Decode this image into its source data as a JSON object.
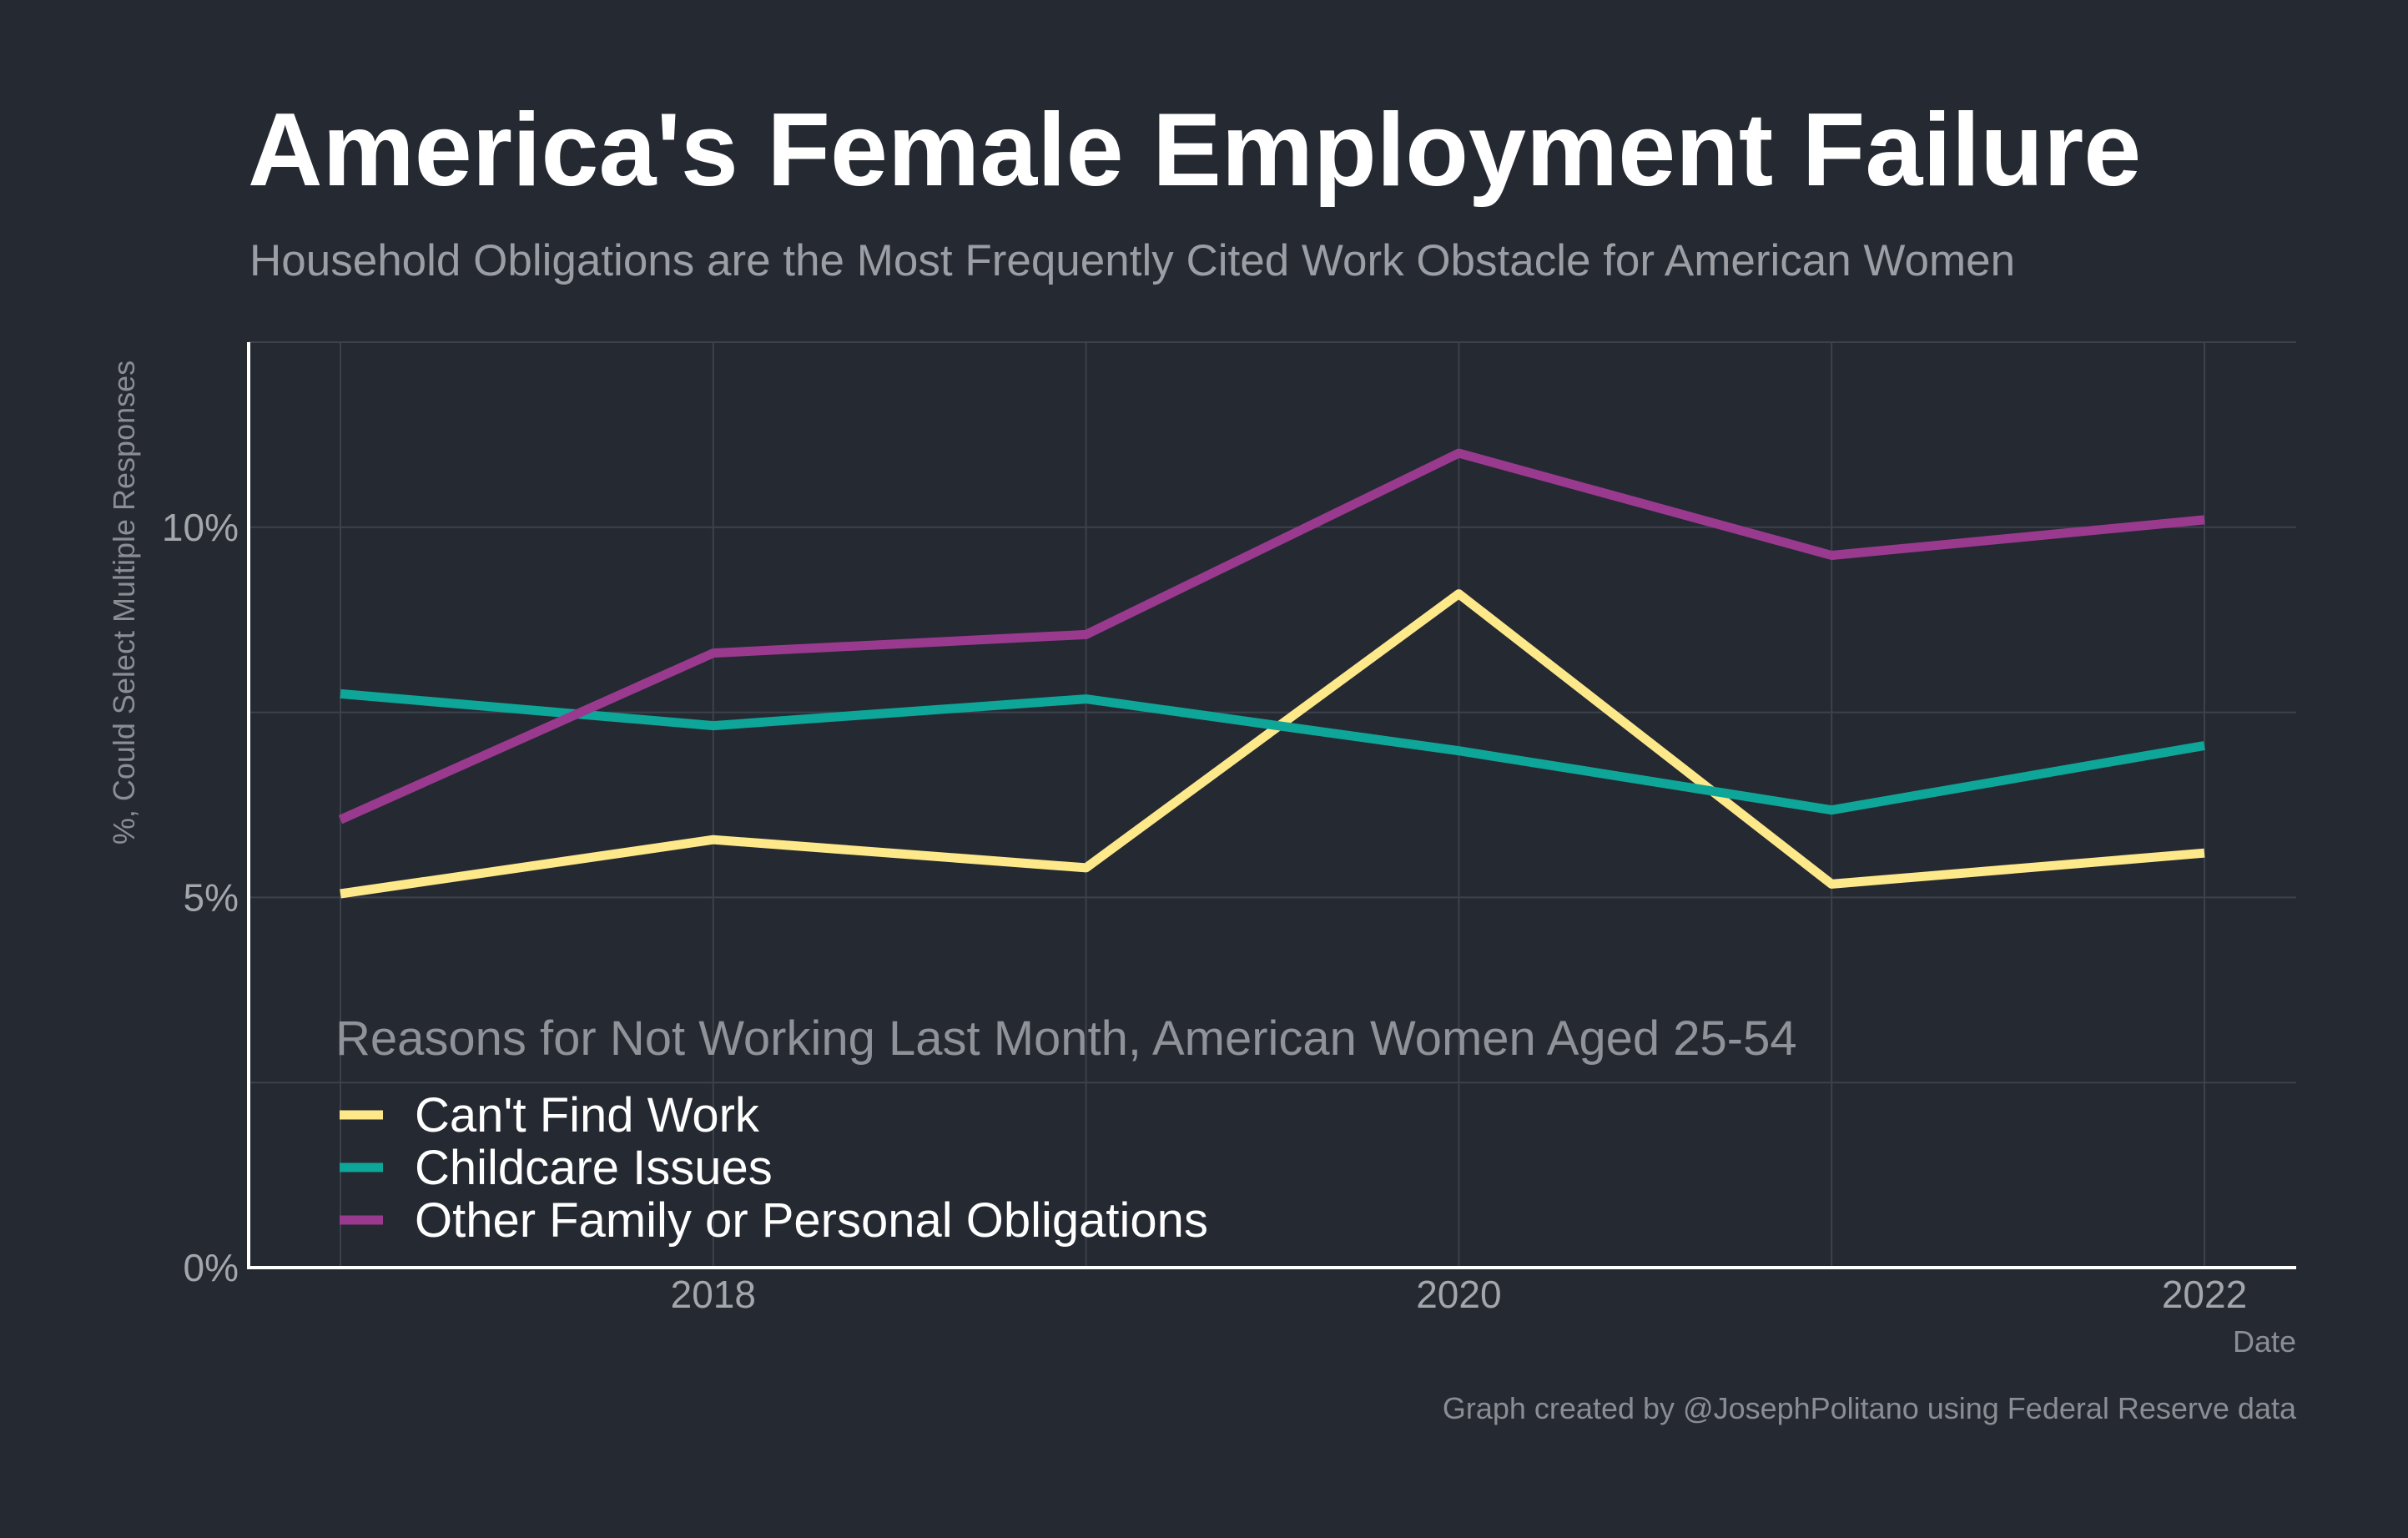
{
  "chart_data": {
    "type": "line",
    "title": "America's Female Employment Failure",
    "subtitle": "Household Obligations are the Most Frequently Cited Work Obstacle for American Women",
    "xlabel": "Date",
    "ylabel": "%, Could Select Multiple Responses",
    "caption": "Graph created by @JosephPolitano using Federal Reserve data",
    "x": [
      "2017",
      "2018",
      "2019",
      "2020",
      "2021",
      "2022"
    ],
    "x_tick_labels": [
      "2018",
      "2020",
      "2022"
    ],
    "y_tick_labels": [
      "0%",
      "5%",
      "10%"
    ],
    "ylim": [
      0,
      12.5
    ],
    "grid": true,
    "legend": {
      "title": "Reasons for Not Working Last Month, American Women Aged 25-54",
      "placement": "bottom-left"
    },
    "series": [
      {
        "name": "Can't Find Work",
        "color": "#fde88a",
        "values": [
          5.05,
          5.78,
          5.4,
          9.1,
          5.18,
          5.6
        ]
      },
      {
        "name": "Childcare Issues",
        "color": "#0ea699",
        "values": [
          7.75,
          7.32,
          7.68,
          6.98,
          6.18,
          7.05
        ]
      },
      {
        "name": "Other Family or Personal Obligations",
        "color": "#993a8f",
        "values": [
          6.05,
          8.3,
          8.55,
          11.0,
          9.62,
          10.1
        ]
      }
    ]
  }
}
